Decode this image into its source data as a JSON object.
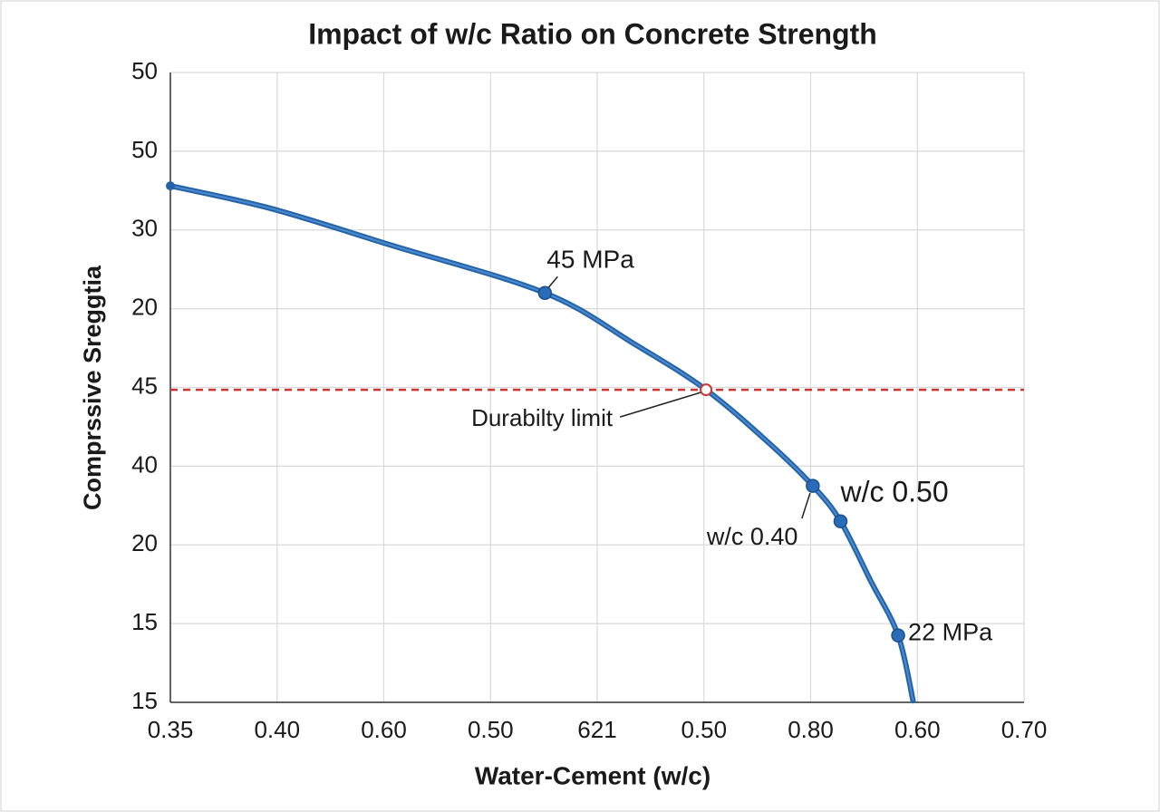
{
  "chart_data": {
    "type": "line",
    "title": "Impact of w/c Ratio on Concrete Strength",
    "xlabel": "Water-Cement (w/c)",
    "ylabel": "Comprssive Sreggtia",
    "xlim": [
      0,
      8
    ],
    "ylim": [
      0,
      8
    ],
    "xticks": [
      {
        "value": 0,
        "label": "0.35"
      },
      {
        "value": 1,
        "label": "0.40"
      },
      {
        "value": 2,
        "label": "0.60"
      },
      {
        "value": 3,
        "label": "0.50"
      },
      {
        "value": 4,
        "label": "621"
      },
      {
        "value": 5,
        "label": "0.50"
      },
      {
        "value": 6,
        "label": "0.80"
      },
      {
        "value": 7,
        "label": "0.60"
      },
      {
        "value": 8,
        "label": "0.70"
      }
    ],
    "yticks": [
      {
        "value": 0,
        "label": "15"
      },
      {
        "value": 1,
        "label": "15"
      },
      {
        "value": 2,
        "label": "20"
      },
      {
        "value": 3,
        "label": "40"
      },
      {
        "value": 4,
        "label": "45"
      },
      {
        "value": 5,
        "label": "20"
      },
      {
        "value": 6,
        "label": "30"
      },
      {
        "value": 7,
        "label": "50"
      },
      {
        "value": 8,
        "label": "50"
      }
    ],
    "grid": true,
    "series": [
      {
        "color": "#2563a8",
        "x": [
          0,
          0.95,
          2.06,
          3.51,
          4.35,
          5.02,
          5.62,
          6.02,
          6.28,
          6.56,
          6.82,
          6.96
        ],
        "values": [
          6.56,
          6.27,
          5.81,
          5.2,
          4.55,
          3.97,
          3.28,
          2.75,
          2.3,
          1.55,
          0.85,
          0.02
        ]
      }
    ],
    "reference_line": {
      "y": 3.97,
      "color": "#cc3333",
      "label": "Durabilty limit"
    },
    "annotations": [
      {
        "text": "45 MPa",
        "x": 3.51,
        "y": 5.2
      },
      {
        "text": "w/c 0.40",
        "x": 6.02,
        "y": 2.75
      },
      {
        "text": "w/c 0.50",
        "x": 6.28,
        "y": 2.3
      },
      {
        "text": "22 MPa",
        "x": 6.82,
        "y": 0.85
      }
    ]
  }
}
